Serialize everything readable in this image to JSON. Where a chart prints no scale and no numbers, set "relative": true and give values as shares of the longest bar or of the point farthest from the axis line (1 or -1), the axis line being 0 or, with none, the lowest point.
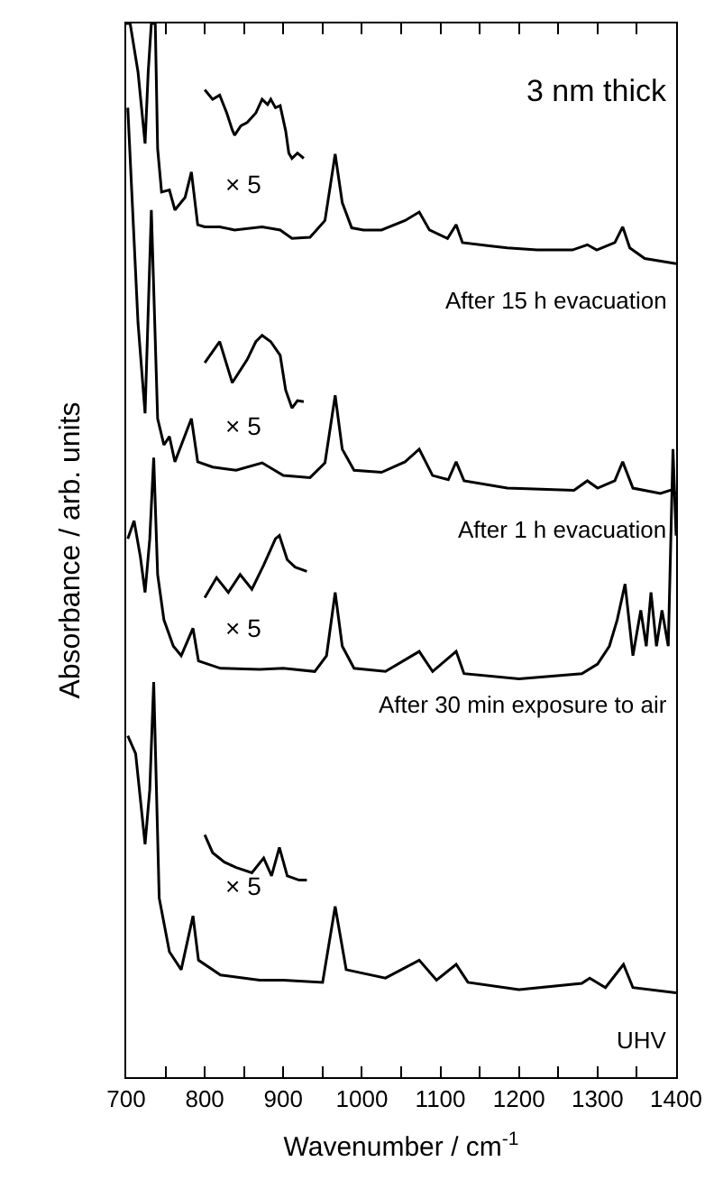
{
  "chart_data": {
    "type": "line",
    "relative": true,
    "xlabel": "Wavenumber / cm$^{-1}$",
    "ylabel": "Absorbance / arb. units",
    "xlim": [
      700,
      1400
    ],
    "xticks": [
      700,
      {
        "value": 750,
        "label": null
      },
      800,
      {
        "value": 850,
        "label": null
      },
      900,
      {
        "value": 950,
        "label": null
      },
      1000,
      {
        "value": 1050,
        "label": null
      },
      1100,
      {
        "value": 1150,
        "label": null
      },
      1200,
      {
        "value": 1250,
        "label": null
      },
      1300,
      {
        "value": 1350,
        "label": null
      },
      1400
    ],
    "tick_labels": "x",
    "grid": false,
    "marker": "none",
    "line_style": "solid",
    "series": [
      {
        "color": "#000000",
        "x": [
          700,
          705,
          715,
          724,
          728,
          732,
          737,
          740,
          745,
          755,
          762,
          775,
          783,
          791,
          800,
          819,
          838,
          873,
          896,
          911,
          934,
          953,
          966,
          975,
          987,
          1002,
          1025,
          1055,
          1073,
          1086,
          1109,
          1120,
          1128,
          1162,
          1185,
          1223,
          1268,
          1287,
          1299,
          1322,
          1332,
          1341,
          1360,
          1400
        ],
        "values": [
          1.0,
          1.0,
          0.954,
          0.886,
          0.954,
          1.0,
          1.0,
          0.881,
          0.84,
          0.842,
          0.823,
          0.835,
          0.859,
          0.809,
          0.807,
          0.807,
          0.804,
          0.807,
          0.804,
          0.796,
          0.797,
          0.813,
          0.876,
          0.83,
          0.806,
          0.804,
          0.804,
          0.813,
          0.821,
          0.804,
          0.796,
          0.809,
          0.792,
          0.789,
          0.787,
          0.785,
          0.785,
          0.79,
          0.785,
          0.792,
          0.807,
          0.787,
          0.777,
          0.772
        ]
      },
      {
        "color": "#000000",
        "x": [
          800,
          810,
          819,
          828,
          835,
          838,
          846,
          854,
          865,
          873,
          880,
          884,
          890,
          896,
          903,
          907,
          911,
          918,
          926
        ],
        "values": [
          0.937,
          0.928,
          0.932,
          0.915,
          0.899,
          0.894,
          0.903,
          0.906,
          0.915,
          0.928,
          0.923,
          0.928,
          0.92,
          0.922,
          0.898,
          0.877,
          0.872,
          0.877,
          0.872
        ]
      },
      {
        "color": "#000000",
        "x": [
          702,
          715,
          724,
          732,
          740,
          748,
          755,
          762,
          783,
          791,
          810,
          840,
          873,
          900,
          934,
          953,
          966,
          975,
          990,
          1025,
          1055,
          1073,
          1090,
          1110,
          1120,
          1130,
          1185,
          1270,
          1287,
          1300,
          1322,
          1332,
          1345,
          1380,
          1393,
          1400
        ],
        "values": [
          0.92,
          0.716,
          0.63,
          0.823,
          0.625,
          0.6,
          0.608,
          0.584,
          0.625,
          0.584,
          0.579,
          0.576,
          0.583,
          0.571,
          0.569,
          0.583,
          0.647,
          0.596,
          0.576,
          0.574,
          0.584,
          0.596,
          0.571,
          0.567,
          0.584,
          0.566,
          0.559,
          0.557,
          0.566,
          0.559,
          0.566,
          0.584,
          0.559,
          0.554,
          0.557,
          0.554
        ]
      },
      {
        "color": "#000000",
        "x": [
          800,
          819,
          835,
          854,
          865,
          873,
          884,
          896,
          903,
          911,
          918,
          926
        ],
        "values": [
          0.678,
          0.698,
          0.659,
          0.681,
          0.698,
          0.704,
          0.698,
          0.685,
          0.652,
          0.635,
          0.642,
          0.641
        ]
      },
      {
        "color": "#000000",
        "x": [
          702,
          710,
          718,
          724,
          730,
          735,
          740,
          748,
          760,
          770,
          785,
          792,
          820,
          870,
          900,
          940,
          955,
          966,
          975,
          990,
          1030,
          1073,
          1090,
          1120,
          1130,
          1200,
          1280,
          1300,
          1315,
          1325,
          1335,
          1345,
          1355,
          1362,
          1368,
          1375,
          1382,
          1390,
          1396,
          1400
        ],
        "values": [
          0.511,
          0.528,
          0.494,
          0.46,
          0.511,
          0.588,
          0.477,
          0.434,
          0.409,
          0.4,
          0.426,
          0.395,
          0.388,
          0.387,
          0.388,
          0.385,
          0.4,
          0.46,
          0.409,
          0.388,
          0.385,
          0.404,
          0.385,
          0.404,
          0.383,
          0.378,
          0.383,
          0.392,
          0.409,
          0.434,
          0.468,
          0.4,
          0.443,
          0.409,
          0.46,
          0.409,
          0.443,
          0.409,
          0.596,
          0.514
        ]
      },
      {
        "color": "#000000",
        "x": [
          800,
          815,
          830,
          845,
          860,
          875,
          890,
          895,
          905,
          915,
          930
        ],
        "values": [
          0.455,
          0.474,
          0.46,
          0.477,
          0.463,
          0.486,
          0.511,
          0.514,
          0.491,
          0.484,
          0.48
        ]
      },
      {
        "color": "#000000",
        "x": [
          702,
          712,
          724,
          730,
          735,
          742,
          755,
          770,
          785,
          792,
          820,
          870,
          900,
          950,
          966,
          980,
          1030,
          1073,
          1095,
          1120,
          1135,
          1200,
          1280,
          1290,
          1310,
          1333,
          1345,
          1400
        ],
        "values": [
          0.324,
          0.307,
          0.221,
          0.273,
          0.375,
          0.17,
          0.119,
          0.102,
          0.153,
          0.111,
          0.097,
          0.092,
          0.092,
          0.09,
          0.162,
          0.102,
          0.094,
          0.111,
          0.092,
          0.107,
          0.09,
          0.083,
          0.089,
          0.094,
          0.085,
          0.107,
          0.085,
          0.08
        ]
      },
      {
        "color": "#000000",
        "x": [
          800,
          810,
          825,
          840,
          860,
          875,
          885,
          895,
          905,
          920,
          930
        ],
        "values": [
          0.23,
          0.213,
          0.204,
          0.199,
          0.194,
          0.208,
          0.191,
          0.218,
          0.191,
          0.187,
          0.187
        ]
      }
    ],
    "annotations": [
      "3 nm thick",
      "After 15 h evacuation",
      "After 1 h evacuation",
      "After 30 min exposure to air",
      "UHV",
      "× 5",
      "× 5",
      "× 5",
      "× 5"
    ]
  }
}
